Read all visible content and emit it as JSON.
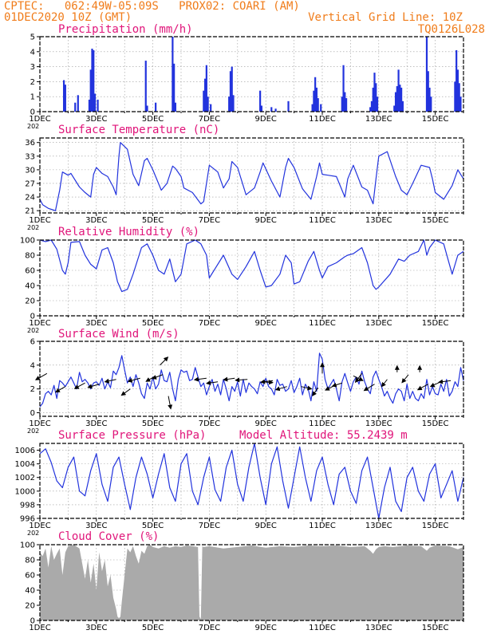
{
  "header": {
    "line1": "CPTEC:   062:49W-05:09S   PROX02: COARI (AM)",
    "line2": "01DEC2020 10Z (GMT)",
    "grid_note": "Vertical Grid Line: 10Z",
    "code": "TQ0126L028"
  },
  "x_axis": {
    "tick_labels": [
      "1DEC",
      "3DEC",
      "5DEC",
      "7DEC",
      "9DEC",
      "11DEC",
      "13DEC",
      "15DEC"
    ],
    "tick_days": [
      1,
      3,
      5,
      7,
      9,
      11,
      13,
      15
    ],
    "corner_label": "202",
    "range_days": [
      1,
      16
    ]
  },
  "colors": {
    "header": "#f07c1a",
    "panel_title": "#e0157a",
    "series": "#2233dd",
    "cloud": "#aaaaaa",
    "arrow": "#000000"
  },
  "chart_data": [
    {
      "type": "bar",
      "title": "Precipitation (mm/h)",
      "ylim": [
        0,
        5
      ],
      "y_ticks": [
        0,
        1,
        2,
        3,
        4,
        5
      ],
      "x_unit": "day",
      "bars": [
        [
          1.85,
          2.1
        ],
        [
          1.9,
          1.8
        ],
        [
          2.25,
          0.6
        ],
        [
          2.35,
          1.1
        ],
        [
          2.75,
          0.8
        ],
        [
          2.8,
          2.8
        ],
        [
          2.85,
          4.2
        ],
        [
          2.9,
          4.1
        ],
        [
          2.95,
          1.2
        ],
        [
          3.05,
          0.8
        ],
        [
          4.75,
          3.4
        ],
        [
          4.8,
          0.4
        ],
        [
          5.1,
          0.6
        ],
        [
          5.7,
          5.0
        ],
        [
          5.75,
          3.2
        ],
        [
          5.8,
          0.6
        ],
        [
          6.8,
          1.4
        ],
        [
          6.85,
          2.2
        ],
        [
          6.9,
          3.1
        ],
        [
          6.95,
          1.0
        ],
        [
          7.05,
          0.5
        ],
        [
          7.7,
          1.0
        ],
        [
          7.75,
          2.7
        ],
        [
          7.8,
          3.0
        ],
        [
          7.85,
          1.1
        ],
        [
          8.8,
          1.4
        ],
        [
          8.85,
          0.4
        ],
        [
          9.2,
          0.3
        ],
        [
          9.35,
          0.2
        ],
        [
          9.8,
          0.7
        ],
        [
          10.65,
          0.5
        ],
        [
          10.7,
          1.4
        ],
        [
          10.75,
          2.3
        ],
        [
          10.8,
          1.6
        ],
        [
          10.85,
          0.9
        ],
        [
          10.95,
          0.5
        ],
        [
          11.7,
          1.0
        ],
        [
          11.75,
          3.1
        ],
        [
          11.8,
          1.3
        ],
        [
          11.85,
          0.9
        ],
        [
          12.7,
          0.3
        ],
        [
          12.75,
          0.7
        ],
        [
          12.8,
          1.6
        ],
        [
          12.85,
          2.6
        ],
        [
          12.9,
          1.9
        ],
        [
          12.95,
          1.0
        ],
        [
          13.55,
          0.4
        ],
        [
          13.6,
          1.3
        ],
        [
          13.65,
          1.7
        ],
        [
          13.7,
          2.8
        ],
        [
          13.75,
          1.8
        ],
        [
          13.8,
          1.6
        ],
        [
          13.85,
          0.7
        ],
        [
          14.7,
          5.0
        ],
        [
          14.75,
          2.7
        ],
        [
          14.8,
          1.6
        ],
        [
          14.85,
          1.0
        ],
        [
          15.7,
          2.0
        ],
        [
          15.75,
          4.1
        ],
        [
          15.8,
          2.8
        ],
        [
          15.85,
          1.9
        ],
        [
          15.9,
          1.0
        ]
      ]
    },
    {
      "type": "line",
      "title": "Surface Temperature (nC)",
      "ylim": [
        20.5,
        37
      ],
      "y_ticks": [
        21,
        24,
        27,
        30,
        33,
        36
      ],
      "x": [
        1.0,
        1.1,
        1.3,
        1.45,
        1.55,
        1.7,
        1.8,
        2.0,
        2.1,
        2.4,
        2.6,
        2.8,
        2.9,
        3.0,
        3.2,
        3.4,
        3.6,
        3.7,
        3.8,
        3.85,
        4.1,
        4.3,
        4.5,
        4.7,
        4.8,
        5.0,
        5.3,
        5.5,
        5.7,
        5.8,
        6.0,
        6.1,
        6.4,
        6.7,
        6.8,
        7.0,
        7.3,
        7.5,
        7.7,
        7.8,
        8.0,
        8.3,
        8.6,
        8.8,
        8.9,
        9.2,
        9.5,
        9.7,
        9.8,
        10.0,
        10.3,
        10.6,
        10.8,
        10.9,
        11.0,
        11.2,
        11.5,
        11.8,
        11.9,
        12.1,
        12.4,
        12.6,
        12.8,
        12.9,
        13.0,
        13.3,
        13.6,
        13.8,
        14.0,
        14.2,
        14.5,
        14.8,
        14.9,
        15.0,
        15.3,
        15.6,
        15.8,
        16.0
      ],
      "y": [
        23.5,
        22.3,
        21.5,
        21.2,
        21.0,
        25.5,
        29.5,
        28.8,
        29.2,
        26.2,
        25.0,
        24.0,
        29.0,
        30.5,
        29.2,
        28.5,
        26.2,
        24.5,
        33.0,
        36.0,
        34.5,
        29.0,
        26.5,
        32.0,
        32.5,
        30.0,
        25.5,
        27.0,
        30.8,
        30.3,
        28.5,
        26.0,
        25.0,
        22.5,
        23.0,
        31.0,
        29.5,
        26.0,
        28.0,
        31.8,
        30.5,
        24.5,
        26.0,
        29.5,
        31.5,
        27.5,
        24.0,
        30.5,
        32.5,
        30.5,
        25.8,
        23.5,
        28.5,
        31.5,
        29.0,
        28.8,
        28.5,
        24.0,
        28.0,
        31.0,
        26.2,
        25.5,
        22.5,
        28.0,
        33.0,
        34.0,
        28.5,
        25.5,
        24.5,
        27.0,
        31.0,
        30.5,
        28.0,
        25.0,
        23.5,
        26.5,
        30.0,
        28.0
      ]
    },
    {
      "type": "line",
      "title": "Relative Humidity (%)",
      "ylim": [
        0,
        100
      ],
      "y_ticks": [
        0,
        20,
        40,
        60,
        80,
        100
      ],
      "x": [
        1.0,
        1.2,
        1.4,
        1.6,
        1.8,
        1.9,
        2.0,
        2.1,
        2.4,
        2.6,
        2.8,
        3.0,
        3.2,
        3.4,
        3.6,
        3.75,
        3.9,
        4.1,
        4.3,
        4.6,
        4.8,
        5.0,
        5.2,
        5.4,
        5.6,
        5.8,
        6.0,
        6.2,
        6.5,
        6.7,
        6.9,
        7.0,
        7.2,
        7.5,
        7.8,
        8.0,
        8.3,
        8.6,
        8.8,
        9.0,
        9.2,
        9.5,
        9.7,
        9.9,
        10.0,
        10.2,
        10.5,
        10.7,
        10.9,
        11.0,
        11.2,
        11.5,
        11.8,
        11.9,
        12.1,
        12.4,
        12.6,
        12.8,
        12.9,
        13.0,
        13.4,
        13.7,
        13.9,
        14.1,
        14.4,
        14.6,
        14.7,
        14.8,
        15.0,
        15.3,
        15.6,
        15.8,
        16.0
      ],
      "y": [
        100,
        98,
        100,
        88,
        60,
        55,
        70,
        97,
        98,
        80,
        68,
        62,
        87,
        90,
        70,
        45,
        32,
        35,
        55,
        90,
        95,
        80,
        60,
        55,
        75,
        45,
        55,
        95,
        100,
        95,
        80,
        50,
        62,
        80,
        55,
        48,
        65,
        85,
        60,
        38,
        40,
        55,
        80,
        70,
        42,
        45,
        72,
        85,
        60,
        50,
        65,
        70,
        78,
        80,
        82,
        90,
        70,
        40,
        35,
        38,
        55,
        75,
        72,
        80,
        85,
        100,
        80,
        90,
        100,
        95,
        55,
        80,
        85
      ]
    },
    {
      "type": "line",
      "title": "Surface Wind (m/s)",
      "ylim": [
        -0.3,
        6
      ],
      "y_ticks": [
        0,
        2,
        4,
        6
      ],
      "x": [
        1.0,
        1.1,
        1.2,
        1.3,
        1.4,
        1.5,
        1.6,
        1.7,
        1.8,
        1.9,
        2.0,
        2.1,
        2.2,
        2.3,
        2.4,
        2.5,
        2.6,
        2.7,
        2.8,
        2.9,
        3.0,
        3.1,
        3.2,
        3.3,
        3.4,
        3.5,
        3.6,
        3.7,
        3.8,
        3.9,
        4.0,
        4.1,
        4.2,
        4.3,
        4.4,
        4.5,
        4.6,
        4.7,
        4.8,
        4.9,
        5.0,
        5.1,
        5.2,
        5.3,
        5.4,
        5.5,
        5.6,
        5.7,
        5.8,
        5.9,
        6.0,
        6.1,
        6.2,
        6.3,
        6.4,
        6.5,
        6.6,
        6.7,
        6.8,
        6.9,
        7.0,
        7.1,
        7.2,
        7.3,
        7.4,
        7.5,
        7.6,
        7.7,
        7.8,
        7.9,
        8.0,
        8.1,
        8.2,
        8.3,
        8.4,
        8.5,
        8.6,
        8.7,
        8.8,
        8.9,
        9.0,
        9.1,
        9.2,
        9.3,
        9.4,
        9.5,
        9.6,
        9.7,
        9.8,
        9.9,
        10.0,
        10.1,
        10.2,
        10.3,
        10.4,
        10.5,
        10.6,
        10.7,
        10.8,
        10.9,
        11.0,
        11.1,
        11.2,
        11.3,
        11.4,
        11.5,
        11.6,
        11.7,
        11.8,
        11.9,
        12.0,
        12.1,
        12.2,
        12.3,
        12.4,
        12.5,
        12.6,
        12.7,
        12.8,
        12.9,
        13.0,
        13.1,
        13.2,
        13.3,
        13.4,
        13.5,
        13.6,
        13.7,
        13.8,
        13.9,
        14.0,
        14.1,
        14.2,
        14.3,
        14.4,
        14.5,
        14.6,
        14.7,
        14.8,
        14.9,
        15.0,
        15.1,
        15.2,
        15.3,
        15.4,
        15.5,
        15.6,
        15.7,
        15.8,
        15.9,
        16.0
      ],
      "y": [
        0.5,
        0.8,
        1.6,
        1.8,
        1.5,
        2.3,
        1.2,
        2.7,
        2.5,
        2.2,
        2.6,
        3.0,
        2.5,
        2.0,
        3.4,
        2.6,
        2.8,
        2.5,
        2.0,
        2.5,
        2.6,
        2.3,
        2.9,
        2.0,
        2.6,
        2.1,
        3.5,
        3.2,
        3.8,
        4.8,
        3.6,
        2.5,
        3.0,
        2.2,
        3.2,
        2.5,
        1.6,
        1.2,
        2.5,
        2.0,
        3.0,
        2.0,
        2.4,
        3.6,
        2.7,
        2.6,
        3.4,
        2.0,
        1.0,
        2.8,
        3.6,
        3.4,
        3.5,
        2.7,
        2.8,
        3.8,
        3.0,
        2.2,
        2.5,
        1.5,
        2.2,
        2.8,
        1.8,
        2.4,
        1.5,
        2.8,
        2.0,
        1.0,
        2.2,
        1.8,
        2.6,
        1.4,
        2.8,
        1.7,
        2.5,
        2.2,
        2.0,
        1.6,
        2.6,
        2.2,
        2.9,
        2.2,
        2.0,
        1.5,
        2.8,
        2.3,
        2.4,
        1.8,
        2.0,
        2.7,
        1.7,
        2.2,
        2.9,
        1.5,
        2.4,
        2.0,
        1.0,
        2.6,
        1.8,
        5.0,
        4.5,
        2.8,
        2.0,
        2.4,
        2.8,
        2.0,
        1.0,
        2.6,
        3.3,
        2.5,
        1.8,
        2.6,
        3.0,
        2.4,
        3.5,
        2.6,
        2.0,
        1.6,
        3.0,
        3.5,
        2.8,
        2.2,
        1.4,
        1.8,
        1.2,
        0.8,
        1.6,
        2.0,
        1.8,
        1.0,
        2.4,
        1.2,
        1.8,
        1.2,
        1.0,
        1.6,
        1.2,
        2.8,
        1.5,
        2.2,
        1.6,
        1.5,
        2.4,
        1.8,
        2.8,
        1.4,
        1.8,
        2.6,
        2.2,
        3.8,
        2.7
      ]
    },
    {
      "type": "line",
      "title": "Surface Pressure (hPa)",
      "annotation": "Model Altitude: 55.2439 m",
      "ylim": [
        996,
        1007
      ],
      "y_ticks": [
        996,
        998,
        1000,
        1002,
        1004,
        1006
      ],
      "x": [
        1.0,
        1.2,
        1.4,
        1.6,
        1.8,
        2.0,
        2.2,
        2.4,
        2.6,
        2.8,
        3.0,
        3.2,
        3.4,
        3.6,
        3.8,
        4.0,
        4.2,
        4.4,
        4.6,
        4.8,
        5.0,
        5.2,
        5.4,
        5.6,
        5.8,
        6.0,
        6.2,
        6.4,
        6.6,
        6.8,
        7.0,
        7.2,
        7.4,
        7.6,
        7.8,
        8.0,
        8.2,
        8.4,
        8.6,
        8.8,
        9.0,
        9.2,
        9.4,
        9.6,
        9.8,
        10.0,
        10.2,
        10.4,
        10.6,
        10.8,
        11.0,
        11.2,
        11.4,
        11.6,
        11.8,
        12.0,
        12.2,
        12.4,
        12.6,
        12.8,
        13.0,
        13.2,
        13.4,
        13.6,
        13.8,
        14.0,
        14.2,
        14.4,
        14.6,
        14.8,
        15.0,
        15.2,
        15.4,
        15.6,
        15.8,
        16.0
      ],
      "y": [
        1005.5,
        1006.2,
        1004.2,
        1001.5,
        1000.5,
        1003.5,
        1005.0,
        1000.0,
        999.3,
        1003.0,
        1005.5,
        1001.0,
        998.5,
        1003.5,
        1005.0,
        1001.0,
        997.3,
        1002.0,
        1005.0,
        1002.5,
        999.0,
        1002.5,
        1005.5,
        1000.5,
        998.5,
        1004.0,
        1005.5,
        1000.0,
        998.0,
        1002.0,
        1005.0,
        1000.2,
        998.5,
        1003.5,
        1006.0,
        1001.0,
        998.5,
        1003.5,
        1007.0,
        1002.0,
        998.0,
        1004.0,
        1006.5,
        1001.5,
        997.5,
        1002.0,
        1006.5,
        1002.0,
        998.5,
        1003.0,
        1005.0,
        1001.0,
        998.0,
        1002.5,
        1003.5,
        1000.0,
        998.2,
        1003.0,
        1005.0,
        1000.5,
        996.0,
        1000.5,
        1003.5,
        998.5,
        997.0,
        1002.0,
        1003.5,
        1000.0,
        998.5,
        1002.5,
        1004.0,
        999.0,
        1001.0,
        1003.0,
        998.5,
        1002.0
      ]
    },
    {
      "type": "area",
      "title": "Cloud Cover (%)",
      "ylim": [
        0,
        100
      ],
      "y_ticks": [
        0,
        20,
        40,
        60,
        80,
        100
      ],
      "x": [
        1.0,
        1.1,
        1.2,
        1.3,
        1.4,
        1.5,
        1.6,
        1.7,
        1.8,
        1.9,
        2.0,
        2.2,
        2.4,
        2.6,
        2.7,
        2.8,
        2.9,
        3.0,
        3.1,
        3.2,
        3.3,
        3.4,
        3.5,
        3.6,
        3.7,
        3.75,
        3.8,
        3.85,
        3.9,
        4.0,
        4.1,
        4.2,
        4.3,
        4.4,
        4.5,
        4.6,
        4.7,
        4.8,
        4.9,
        5.0,
        5.2,
        5.4,
        5.6,
        5.8,
        6.0,
        6.2,
        6.4,
        6.6,
        6.65,
        6.7,
        6.75,
        6.8,
        7.0,
        7.5,
        8.0,
        8.5,
        9.0,
        9.5,
        10.0,
        10.5,
        11.0,
        11.5,
        12.0,
        12.5,
        12.7,
        12.8,
        12.9,
        13.0,
        13.2,
        13.5,
        14.0,
        14.5,
        14.7,
        14.8,
        15.0,
        15.5,
        15.8,
        16.0
      ],
      "y": [
        90,
        85,
        95,
        70,
        98,
        80,
        88,
        95,
        60,
        90,
        98,
        100,
        95,
        55,
        80,
        50,
        75,
        40,
        90,
        65,
        80,
        45,
        60,
        30,
        15,
        5,
        3,
        5,
        25,
        60,
        95,
        90,
        98,
        85,
        75,
        92,
        88,
        98,
        100,
        97,
        95,
        98,
        96,
        98,
        97,
        99,
        98,
        97,
        5,
        2,
        98,
        97,
        98,
        95,
        97,
        99,
        96,
        98,
        97,
        99,
        98,
        99,
        97,
        98,
        92,
        88,
        94,
        97,
        98,
        97,
        99,
        98,
        92,
        96,
        99,
        98,
        94,
        97
      ]
    },
    {
      "type": "vector",
      "title": "Surface Wind (m/s) vectors",
      "x": [
        1.25,
        1.9,
        2.6,
        3.1,
        3.7,
        4.2,
        4.55,
        5.1,
        5.25,
        5.35,
        5.55,
        6.9,
        7.3,
        7.9,
        8.35,
        8.85,
        9.25,
        9.75,
        10.25,
        10.85,
        11.0,
        11.45,
        11.7,
        12.1,
        12.4,
        12.85,
        13.3,
        13.65,
        14.05,
        14.45,
        14.75,
        15.2,
        15.55
      ],
      "y": [
        3.3,
        2.2,
        2.5,
        2.4,
        2.8,
        2.0,
        2.9,
        3.1,
        4.0,
        3.2,
        1.4,
        2.9,
        2.6,
        2.9,
        2.8,
        2.6,
        2.7,
        2.2,
        2.2,
        2.1,
        3.3,
        2.3,
        2.5,
        3.1,
        3.3,
        2.4,
        2.8,
        3.4,
        3.2,
        3.4,
        2.4,
        2.6,
        2.7
      ],
      "u": [
        -14,
        -12,
        -13,
        -14,
        -14,
        -11,
        -15,
        -12,
        10,
        -13,
        3,
        -15,
        -14,
        -14,
        -15,
        14,
        -15,
        -14,
        13,
        -7,
        0,
        -12,
        -12,
        12,
        -8,
        -13,
        -7,
        0,
        -8,
        0,
        -13,
        -13,
        -15
      ],
      "v": [
        -8,
        -7,
        -7,
        -4,
        -3,
        -8,
        -4,
        -7,
        10,
        -5,
        -16,
        -2,
        -2,
        -2,
        -1,
        -1,
        -2,
        -4,
        -3,
        -10,
        13,
        -6,
        -4,
        -6,
        -11,
        -8,
        -9,
        8,
        -10,
        8,
        -7,
        -6,
        -2
      ]
    }
  ]
}
